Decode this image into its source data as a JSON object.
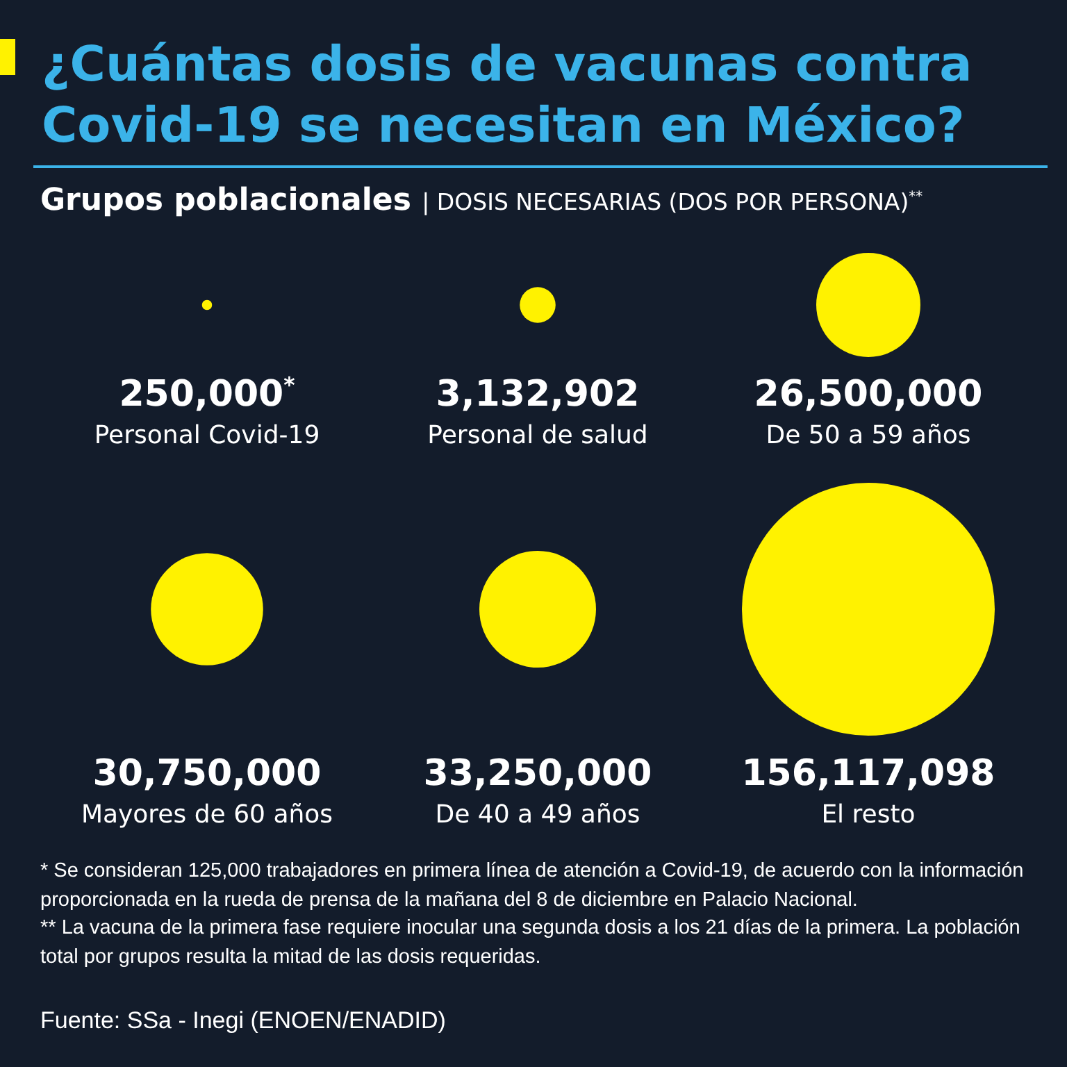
{
  "chart_data": {
    "type": "other",
    "title": "¿Cuántas dosis de vacunas contra Covid-19 se necesitan en México?",
    "subtitle": "Grupos poblacionales | DOSIS NECESARIAS (DOS POR PERSONA)$^{**}$",
    "categories": [
      "Personal Covid-19",
      "Personal de salud",
      "De 50 a 59 años",
      "Mayores de 60 años",
      "De 40 a 49 años",
      "El resto"
    ],
    "values": [
      250000,
      3132902,
      26500000,
      30750000,
      33250000,
      156117098
    ],
    "value_labels": [
      "250,000$^{*}$",
      "3,132,902",
      "26,500,000",
      "30,750,000",
      "33,250,000",
      "156,117,098"
    ],
    "color": "#fff200",
    "annotations": [
      "* Se consideran 125,000 trabajadores en primera línea de atención a Covid-19, de acuerdo con la información proporcionada en la rueda de prensa de la mañana del 8 de diciembre en Palacio Nacional.",
      "** La vacuna de la primera fase requiere inocular una segunda dosis a los 21 días de la primera. La población total por grupos resulta la mitad de las dosis requeridas.",
      "Fuente: SSa - Inegi (ENOEN/ENADID)"
    ]
  }
}
